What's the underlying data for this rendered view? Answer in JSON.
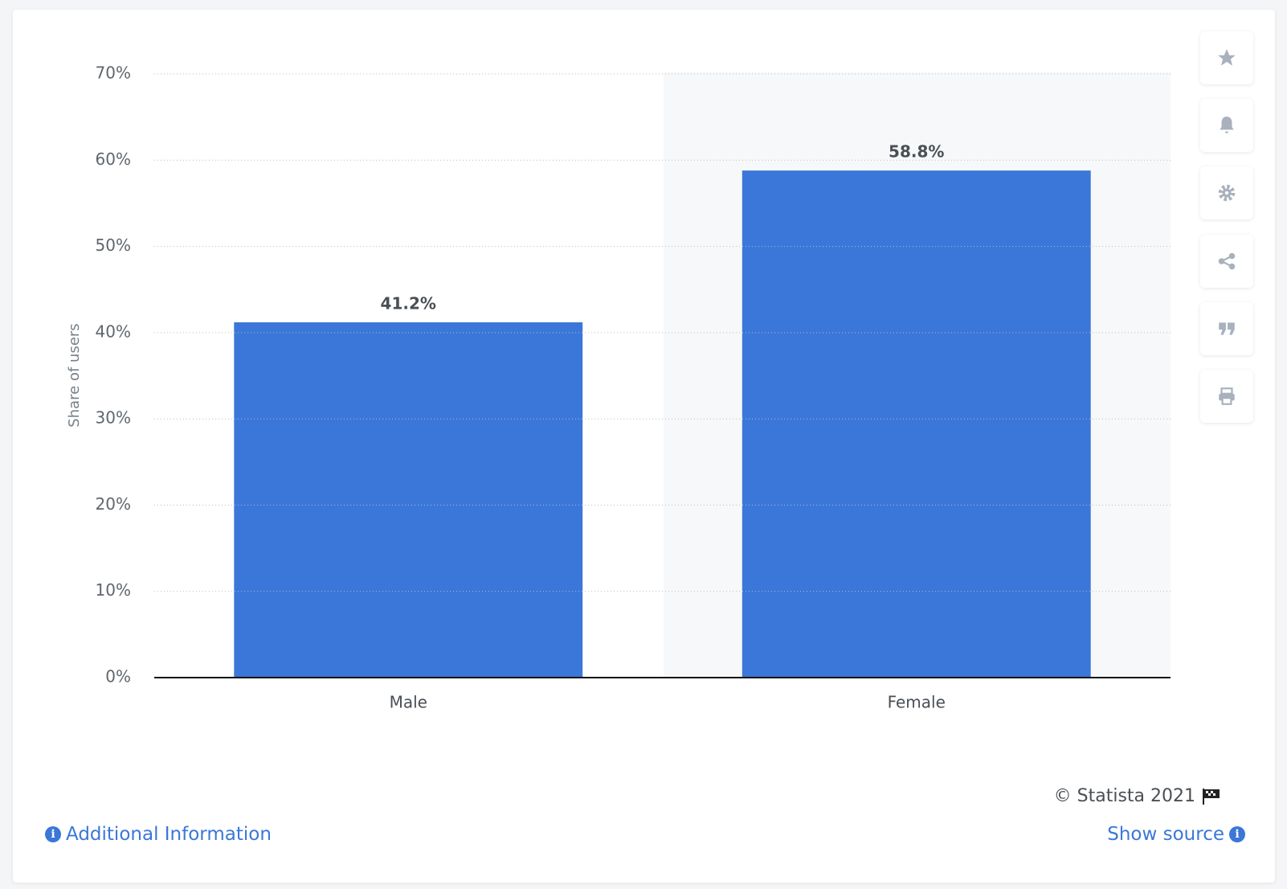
{
  "chart_data": {
    "type": "bar",
    "y_label": "Share of users",
    "categories": [
      "Male",
      "Female"
    ],
    "values": [
      41.2,
      58.8
    ],
    "value_labels": [
      "41.2%",
      "58.8%"
    ],
    "color": "#3b77d8",
    "ylim": [
      0,
      70
    ],
    "yticks": [
      {
        "value": 0,
        "label": "0%"
      },
      {
        "value": 10,
        "label": "10%"
      },
      {
        "value": 20,
        "label": "20%"
      },
      {
        "value": 30,
        "label": "30%"
      },
      {
        "value": 40,
        "label": "40%"
      },
      {
        "value": 50,
        "label": "50%"
      },
      {
        "value": 60,
        "label": "60%"
      },
      {
        "value": 70,
        "label": "70%"
      }
    ],
    "grid": true
  },
  "footer": {
    "copyright": "© Statista 2021",
    "additional_information": "Additional Information",
    "show_source": "Show source"
  }
}
